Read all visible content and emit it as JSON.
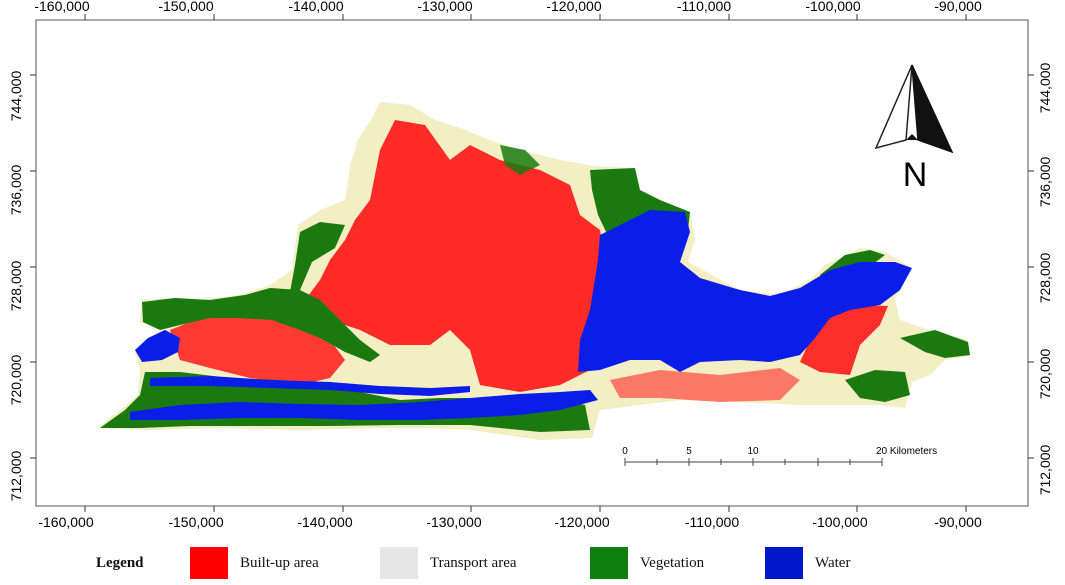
{
  "map": {
    "x_ticks": [
      "-160,000",
      "-150,000",
      "-140,000",
      "-130,000",
      "-120,000",
      "-110,000",
      "-100,000",
      "-90,000"
    ],
    "y_ticks": [
      "744,000",
      "736,000",
      "728,000",
      "720,000",
      "712,000"
    ],
    "north_label": "N",
    "scale_labels": [
      "0",
      "5",
      "10",
      "20 Kilometers"
    ]
  },
  "legend": {
    "title": "Legend",
    "items": [
      {
        "label": "Built-up area",
        "color": "#ff0000"
      },
      {
        "label": "Transport area",
        "color": "#e6e6e6"
      },
      {
        "label": "Vegetation",
        "color": "#0f7f0f"
      },
      {
        "label": "Water",
        "color": "#0018c8"
      }
    ]
  },
  "colors": {
    "builtup": "#ff1a1a",
    "transport": "#f3eec3",
    "vegetation": "#1a7a10",
    "water": "#0a1ee8",
    "frame_bg": "#ffffff"
  }
}
